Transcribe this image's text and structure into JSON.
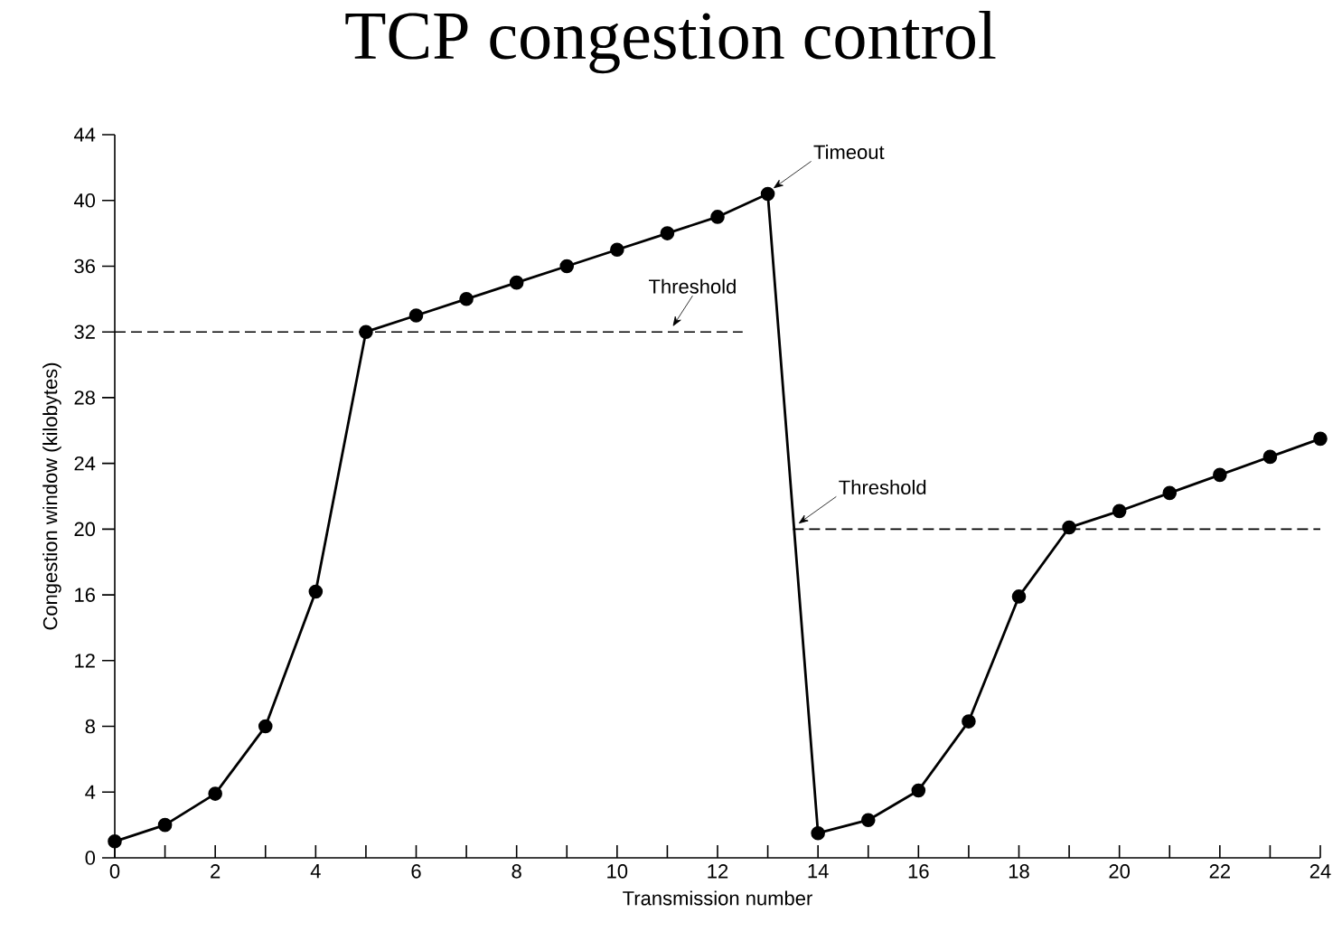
{
  "chart_data": {
    "type": "line",
    "title": "TCP congestion control",
    "xlabel": "Transmission number",
    "ylabel": "Congestion window (kilobytes)",
    "xlim": [
      0,
      24
    ],
    "ylim": [
      0,
      44
    ],
    "xticks": [
      0,
      {
        "value": 1,
        "label": null
      },
      2,
      {
        "value": 3,
        "label": null
      },
      4,
      {
        "value": 5,
        "label": null
      },
      6,
      {
        "value": 7,
        "label": null
      },
      8,
      {
        "value": 9,
        "label": null
      },
      10,
      {
        "value": 11,
        "label": null
      },
      12,
      {
        "value": 13,
        "label": null
      },
      14,
      {
        "value": 15,
        "label": null
      },
      16,
      {
        "value": 17,
        "label": null
      },
      18,
      {
        "value": 19,
        "label": null
      },
      20,
      {
        "value": 21,
        "label": null
      },
      22,
      {
        "value": 23,
        "label": null
      },
      24
    ],
    "yticks": [
      0,
      4,
      8,
      12,
      16,
      20,
      24,
      28,
      32,
      36,
      40,
      44
    ],
    "grid": false,
    "series": [
      {
        "color": "#000000",
        "marker": "circle",
        "line_style": "solid",
        "x": [
          0,
          1,
          2,
          3,
          4,
          5,
          6,
          7,
          8,
          9,
          10,
          11,
          12,
          13,
          14,
          15,
          16,
          17,
          18,
          19,
          20,
          21,
          22,
          23,
          24
        ],
        "values": [
          1,
          2,
          3.9,
          8,
          16.2,
          32,
          33,
          34,
          35,
          36,
          37,
          38,
          39,
          40.4,
          1.5,
          2.3,
          4.1,
          8.3,
          15.9,
          20.1,
          21.1,
          22.2,
          23.3,
          24.4,
          25.5
        ]
      },
      {
        "color": "#000000",
        "marker": "none",
        "line_style": "dashed",
        "x": [
          0,
          12.5
        ],
        "values": [
          32,
          32
        ]
      },
      {
        "color": "#000000",
        "marker": "none",
        "line_style": "dashed",
        "x": [
          13.5,
          24
        ],
        "values": [
          20,
          20
        ]
      }
    ],
    "annotations": [
      {
        "text": "Timeout",
        "x": 13,
        "y": 40.4
      },
      {
        "text": "Threshold",
        "x": 11,
        "y": 32
      },
      {
        "text": "Threshold",
        "x": 13.5,
        "y": 20
      }
    ]
  }
}
